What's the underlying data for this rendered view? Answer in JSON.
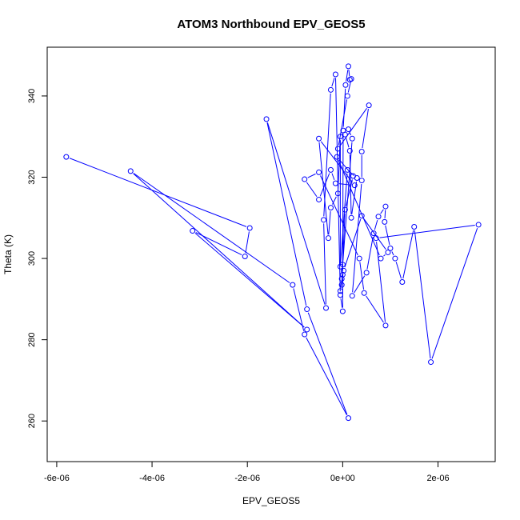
{
  "chart_data": {
    "type": "scatter",
    "title": "ATOM3 Northbound EPV_GEOS5",
    "xlabel": "EPV_GEOS5",
    "ylabel": "Theta (K)",
    "xlim": [
      -6.2e-06,
      3.2e-06
    ],
    "ylim": [
      250,
      352
    ],
    "xticks": [
      -6e-06,
      -4e-06,
      -2e-06,
      0,
      2e-06
    ],
    "xtick_labels": [
      "-6e-06",
      "-4e-06",
      "-2e-06",
      "0e+00",
      "2e-06"
    ],
    "yticks": [
      260,
      280,
      300,
      320,
      340
    ],
    "ytick_labels": [
      "260",
      "280",
      "300",
      "320",
      "340"
    ],
    "grid": false,
    "color": "#0000ff",
    "line_style": "points connected by lines (type b)",
    "series": [
      {
        "values": [
          {
            "x": -5.8e-06,
            "y": 325.0
          },
          {
            "x": -1.95e-06,
            "y": 307.5
          },
          {
            "x": -2.05e-06,
            "y": 300.5
          },
          {
            "x": -3.15e-06,
            "y": 306.8
          },
          {
            "x": -7.5e-07,
            "y": 282.5
          },
          {
            "x": -4.45e-06,
            "y": 321.5
          },
          {
            "x": -1.05e-06,
            "y": 293.5
          },
          {
            "x": -8e-07,
            "y": 281.3
          },
          {
            "x": 1.2e-07,
            "y": 260.7
          },
          {
            "x": -7.5e-07,
            "y": 287.5
          },
          {
            "x": -1.6e-06,
            "y": 334.3
          },
          {
            "x": -3.5e-07,
            "y": 287.8
          },
          {
            "x": -4e-07,
            "y": 309.5
          },
          {
            "x": -2.5e-07,
            "y": 341.5
          },
          {
            "x": -1.5e-07,
            "y": 345.3
          },
          {
            "x": -5e-08,
            "y": 291.0
          },
          {
            "x": 0.0,
            "y": 287.0
          },
          {
            "x": 0.0,
            "y": 296.0
          },
          {
            "x": 1e-08,
            "y": 331.5
          },
          {
            "x": 6e-08,
            "y": 342.7
          },
          {
            "x": 1.2e-07,
            "y": 347.3
          },
          {
            "x": 1.5e-07,
            "y": 344.0
          },
          {
            "x": 1.8e-07,
            "y": 344.2
          },
          {
            "x": 1e-07,
            "y": 340.0
          },
          {
            "x": -1e-07,
            "y": 327.0
          },
          {
            "x": 5.5e-07,
            "y": 337.7
          },
          {
            "x": 4e-07,
            "y": 326.3
          },
          {
            "x": 4e-07,
            "y": 319.2
          },
          {
            "x": 2e-07,
            "y": 290.8
          },
          {
            "x": 5e-07,
            "y": 296.5
          },
          {
            "x": 6.5e-07,
            "y": 306.2
          },
          {
            "x": 7.5e-07,
            "y": 310.3
          },
          {
            "x": 9e-07,
            "y": 312.8
          },
          {
            "x": 8.8e-07,
            "y": 309.0
          },
          {
            "x": 1e-06,
            "y": 302.5
          },
          {
            "x": 1.1e-06,
            "y": 300.0
          },
          {
            "x": 1.25e-06,
            "y": 294.2
          },
          {
            "x": 1.5e-06,
            "y": 307.8
          },
          {
            "x": 1.85e-06,
            "y": 274.5
          },
          {
            "x": 2.85e-06,
            "y": 308.3
          },
          {
            "x": 7e-07,
            "y": 305.0
          },
          {
            "x": 9e-07,
            "y": 283.5
          },
          {
            "x": 4.5e-07,
            "y": 291.5
          },
          {
            "x": 3.5e-07,
            "y": 300.0
          },
          {
            "x": -5e-07,
            "y": 321.2
          },
          {
            "x": -8e-07,
            "y": 319.5
          },
          {
            "x": -5e-07,
            "y": 314.5
          },
          {
            "x": -2.5e-07,
            "y": 321.8
          },
          {
            "x": -1.5e-07,
            "y": 318.5
          },
          {
            "x": 2.5e-07,
            "y": 318.0
          },
          {
            "x": -5e-07,
            "y": 329.5
          },
          {
            "x": -3e-07,
            "y": 305.0
          },
          {
            "x": -2.5e-07,
            "y": 312.5
          },
          {
            "x": -1e-07,
            "y": 316.0
          },
          {
            "x": -5e-08,
            "y": 330.0
          },
          {
            "x": -5e-08,
            "y": 298.0
          },
          {
            "x": 1e-07,
            "y": 321.8
          },
          {
            "x": 3e-07,
            "y": 319.8
          },
          {
            "x": 1.8e-07,
            "y": 310.0
          },
          {
            "x": 1.5e-07,
            "y": 326.5
          },
          {
            "x": 5e-08,
            "y": 330.5
          },
          {
            "x": 1.2e-07,
            "y": 331.8
          },
          {
            "x": 2e-07,
            "y": 329.5
          },
          {
            "x": 0.0,
            "y": 298.5
          },
          {
            "x": -2e-08,
            "y": 293.5
          },
          {
            "x": 5e-08,
            "y": 312.0
          },
          {
            "x": 2.2e-07,
            "y": 320.3
          },
          {
            "x": -1.2e-07,
            "y": 325.0
          },
          {
            "x": 8e-07,
            "y": 300.0
          },
          {
            "x": 9.5e-07,
            "y": 301.5
          },
          {
            "x": 4e-07,
            "y": 310.5
          },
          {
            "x": 2e-08,
            "y": 297.0
          },
          {
            "x": -5e-08,
            "y": 292.0
          },
          {
            "x": -2e-08,
            "y": 295.0
          }
        ]
      }
    ]
  }
}
